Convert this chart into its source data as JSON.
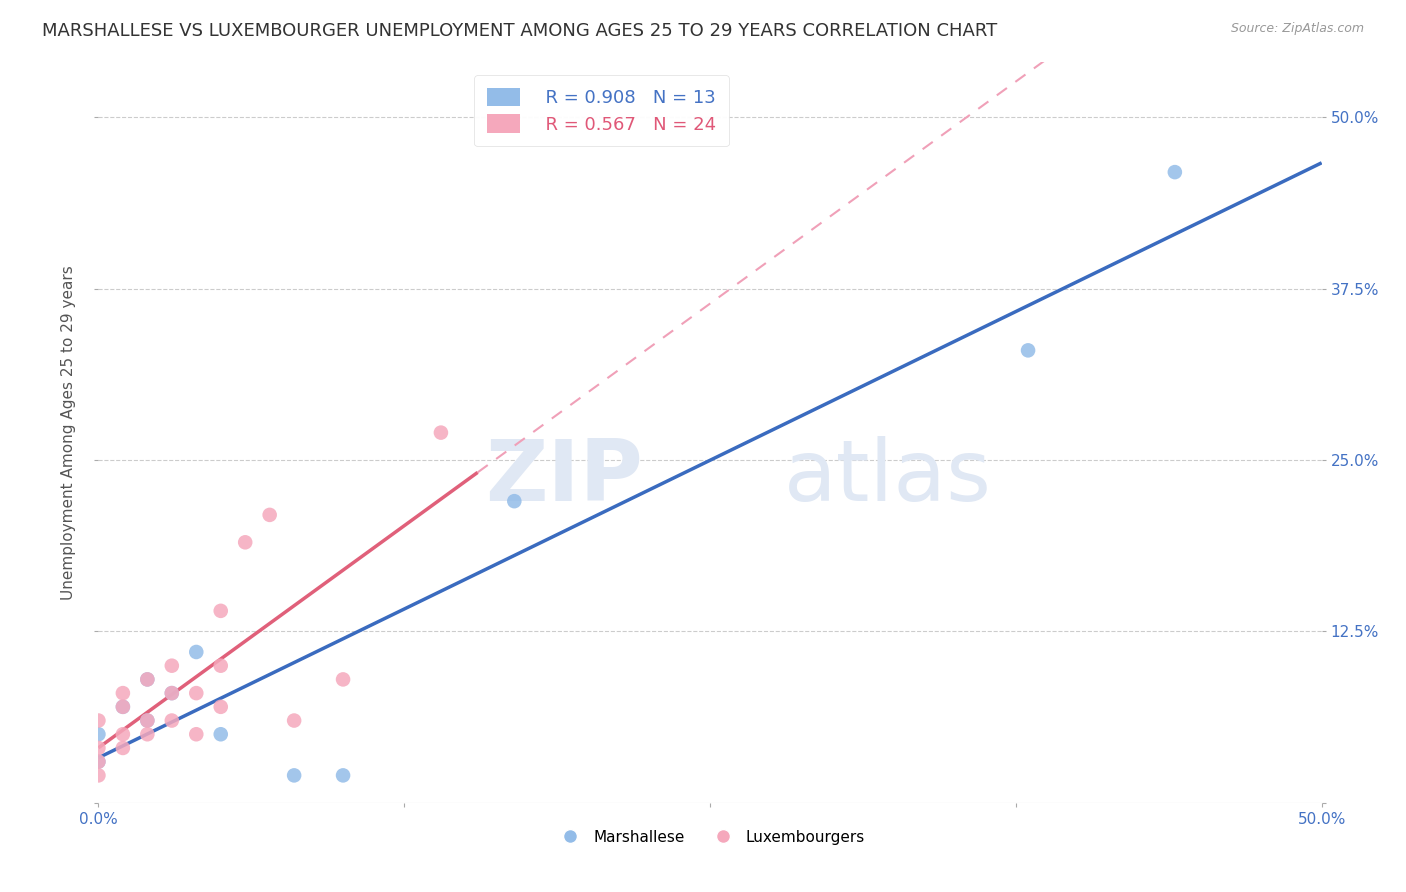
{
  "title": "MARSHALLESE VS LUXEMBOURGER UNEMPLOYMENT AMONG AGES 25 TO 29 YEARS CORRELATION CHART",
  "source": "Source: ZipAtlas.com",
  "ylabel": "Unemployment Among Ages 25 to 29 years",
  "xlim": [
    0.0,
    0.5
  ],
  "ylim": [
    0.0,
    0.54
  ],
  "xticks": [
    0.0,
    0.125,
    0.25,
    0.375,
    0.5
  ],
  "yticks": [
    0.0,
    0.125,
    0.25,
    0.375,
    0.5
  ],
  "xticklabels": [
    "0.0%",
    "",
    "",
    "",
    "50.0%"
  ],
  "yticklabels": [
    "",
    "12.5%",
    "25.0%",
    "37.5%",
    "50.0%"
  ],
  "marshallese_x": [
    0.0,
    0.0,
    0.01,
    0.02,
    0.02,
    0.03,
    0.04,
    0.05,
    0.08,
    0.1,
    0.17,
    0.38,
    0.44
  ],
  "marshallese_y": [
    0.03,
    0.05,
    0.07,
    0.06,
    0.09,
    0.08,
    0.11,
    0.05,
    0.02,
    0.02,
    0.22,
    0.33,
    0.46
  ],
  "luxembourger_x": [
    0.0,
    0.0,
    0.0,
    0.0,
    0.01,
    0.01,
    0.01,
    0.01,
    0.02,
    0.02,
    0.02,
    0.03,
    0.03,
    0.03,
    0.04,
    0.04,
    0.05,
    0.05,
    0.05,
    0.06,
    0.07,
    0.08,
    0.1,
    0.14
  ],
  "luxembourger_y": [
    0.02,
    0.03,
    0.04,
    0.06,
    0.04,
    0.05,
    0.07,
    0.08,
    0.05,
    0.06,
    0.09,
    0.06,
    0.08,
    0.1,
    0.05,
    0.08,
    0.07,
    0.1,
    0.14,
    0.19,
    0.21,
    0.06,
    0.09,
    0.27
  ],
  "marshallese_color": "#93bce8",
  "luxembourger_color": "#f5a8bc",
  "marshallese_line_color": "#3a6bbf",
  "luxembourger_line_color": "#e0607a",
  "luxembourger_dash_color": "#f0a0b8",
  "legend_R_marshallese": "R = 0.908",
  "legend_N_marshallese": "N = 13",
  "legend_R_luxembourger": "R = 0.567",
  "legend_N_luxembourger": "N = 24",
  "watermark_zip": "ZIP",
  "watermark_atlas": "atlas",
  "title_fontsize": 13,
  "axis_label_fontsize": 11,
  "tick_fontsize": 11,
  "legend_fontsize": 13
}
